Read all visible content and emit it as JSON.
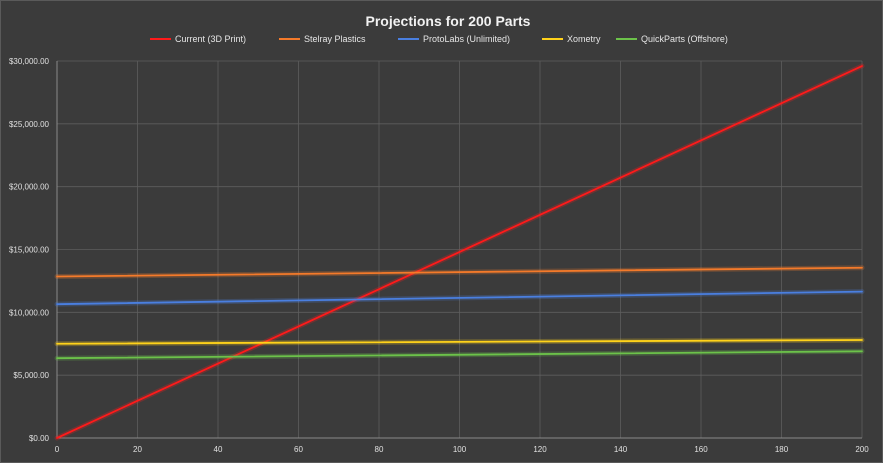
{
  "chart_data": {
    "type": "line",
    "title": "Projections for 200 Parts",
    "xlabel": "",
    "ylabel": "",
    "xlim": [
      0,
      200
    ],
    "ylim": [
      0,
      30000
    ],
    "x_ticks": [
      "0",
      "20",
      "40",
      "60",
      "80",
      "100",
      "120",
      "140",
      "160",
      "180",
      "200"
    ],
    "y_ticks": [
      "$0.00",
      "$5,000.00",
      "$10,000.00",
      "$15,000.00",
      "$20,000.00",
      "$25,000.00",
      "$30,000.00"
    ],
    "grid": true,
    "legend_position": "top",
    "x": [
      0,
      200
    ],
    "series": [
      {
        "name": "Current (3D Print)",
        "color": "#ff1a1a",
        "values": [
          0,
          29600
        ]
      },
      {
        "name": "Stelray Plastics",
        "color": "#f47a2a",
        "values": [
          12850,
          13550
        ]
      },
      {
        "name": "ProtoLabs (Unlimited)",
        "color": "#4a7fe0",
        "values": [
          10650,
          11650
        ]
      },
      {
        "name": "Xometry",
        "color": "#ffd21a",
        "values": [
          7500,
          7800
        ]
      },
      {
        "name": "QuickParts (Offshore)",
        "color": "#6cc24a",
        "values": [
          6350,
          6900
        ]
      }
    ]
  },
  "colors": {
    "background": "#3b3b3b",
    "gridline": "#5e5e5e",
    "axis": "#8a8a8a"
  }
}
